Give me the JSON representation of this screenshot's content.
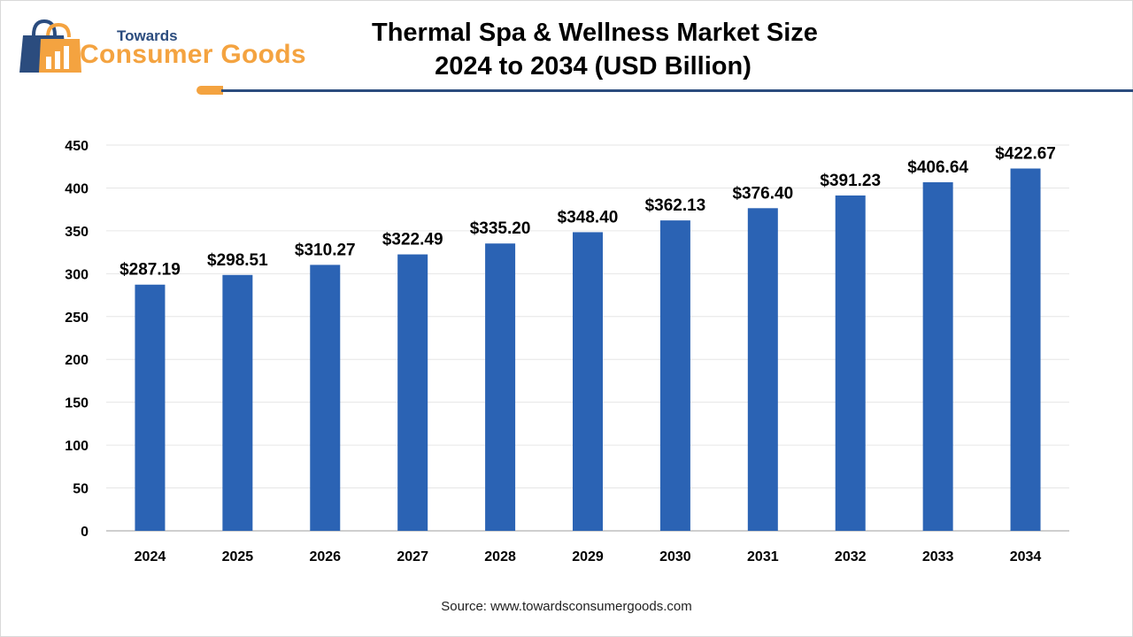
{
  "logo": {
    "top_word": "Towards",
    "name": "Consumer Goods"
  },
  "colors": {
    "bar": "#2b63b4",
    "accent_orange": "#f4a340",
    "accent_navy": "#2b4c7e",
    "gridline": "#e6e6e6"
  },
  "source_text": "Source: www.towardsconsumergoods.com",
  "chart_data": {
    "type": "bar",
    "title": "Thermal Spa & Wellness Market Size",
    "subtitle": "2024 to 2034 (USD Billion)",
    "xlabel": "",
    "ylabel": "",
    "categories": [
      "2024",
      "2025",
      "2026",
      "2027",
      "2028",
      "2029",
      "2030",
      "2031",
      "2032",
      "2033",
      "2034"
    ],
    "values": [
      287.19,
      298.51,
      310.27,
      322.49,
      335.2,
      348.4,
      362.13,
      376.4,
      391.23,
      406.64,
      422.67
    ],
    "data_labels": [
      "$287.19",
      "$298.51",
      "$310.27",
      "$322.49",
      "$335.20",
      "$348.40",
      "$362.13",
      "$376.40",
      "$391.23",
      "$406.64",
      "$422.67"
    ],
    "ylim": [
      0,
      450
    ],
    "yticks": [
      0,
      50,
      100,
      150,
      200,
      250,
      300,
      350,
      400,
      450
    ],
    "grid": true,
    "legend": "none"
  }
}
